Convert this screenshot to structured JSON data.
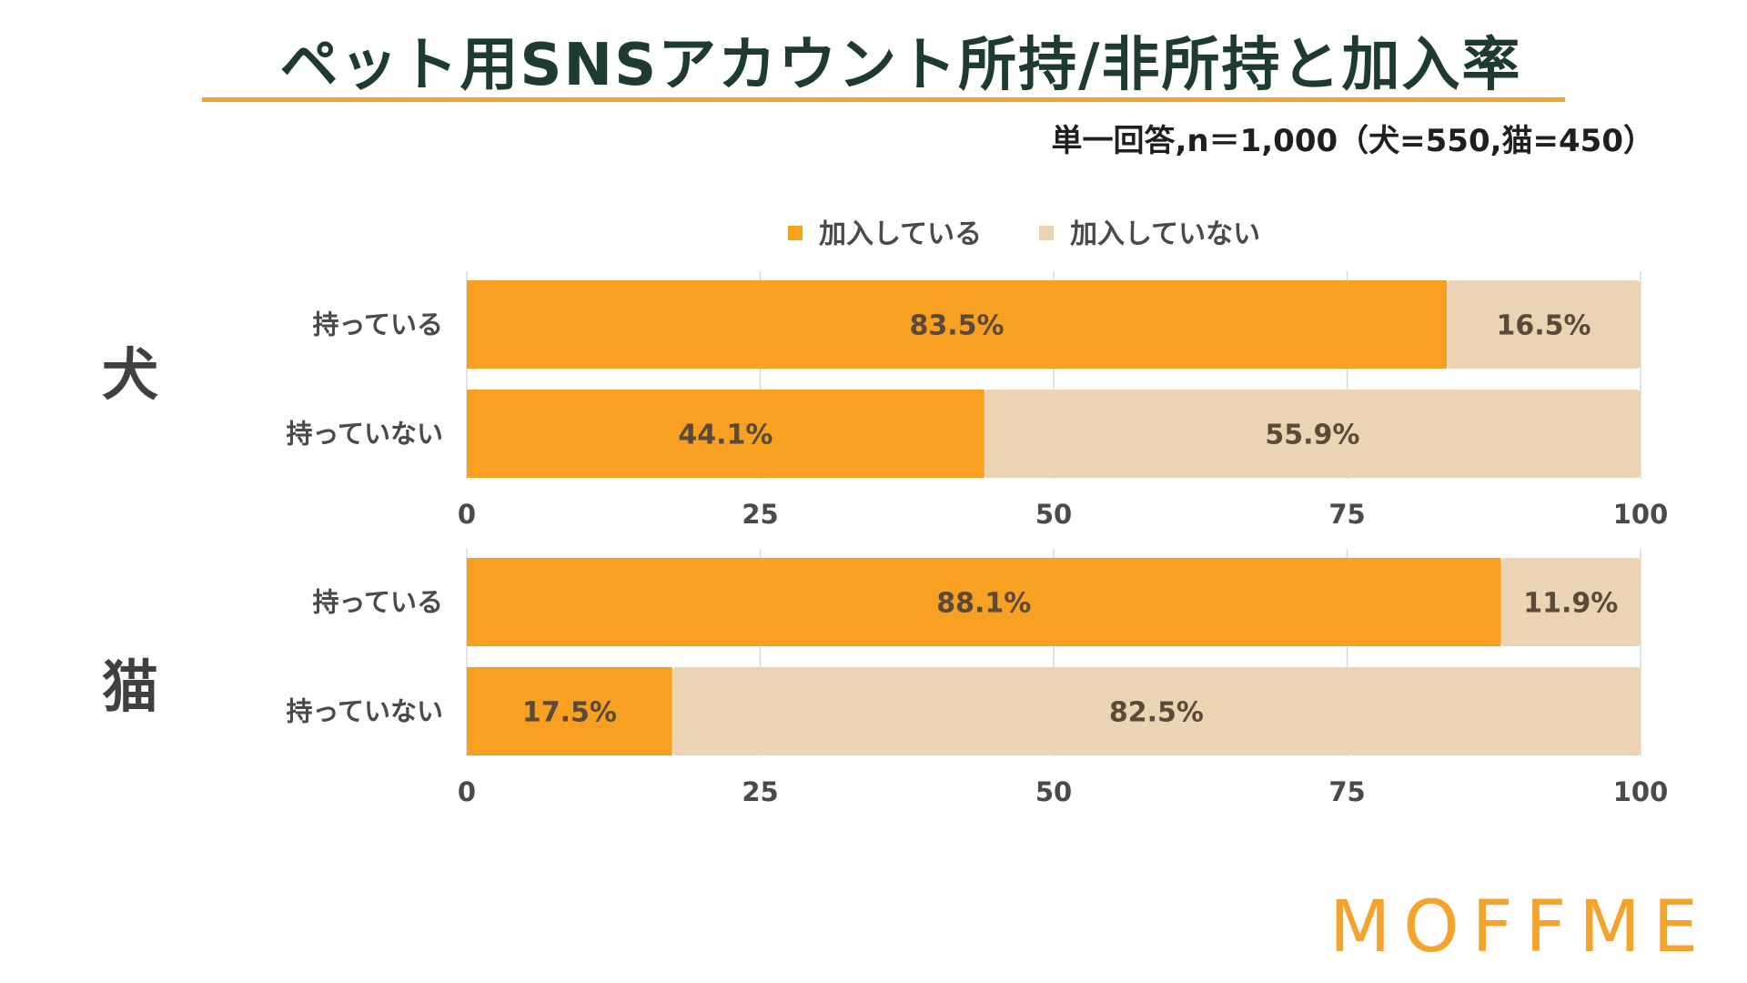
{
  "title": "ペット用SNSアカウント所持/非所持と加入率",
  "subtitle": "単一回答,n＝1,000（犬=550,猫=450）",
  "logo": "MOFFME",
  "colors": {
    "joined": "#f7a022",
    "not_joined": "#ebd4b3",
    "title_underline": "#f5a32b",
    "title_text": "#1e3b2f",
    "logo": "#f5a32b"
  },
  "chart_data": {
    "type": "bar",
    "orientation": "horizontal",
    "stacked": true,
    "legend_position": "top",
    "legend": [
      "加入している",
      "加入していない"
    ],
    "categories": [
      "持っている",
      "持っていない"
    ],
    "xlim": [
      0,
      100
    ],
    "xticks": [
      0,
      25,
      50,
      75,
      100
    ],
    "grid": true,
    "groups": [
      {
        "label": "犬",
        "series": [
          {
            "name": "加入している",
            "values": [
              83.5,
              44.1
            ],
            "labels": [
              "83.5%",
              "44.1%"
            ]
          },
          {
            "name": "加入していない",
            "values": [
              16.5,
              55.9
            ],
            "labels": [
              "16.5%",
              "55.9%"
            ]
          }
        ]
      },
      {
        "label": "猫",
        "series": [
          {
            "name": "加入している",
            "values": [
              88.1,
              17.5
            ],
            "labels": [
              "88.1%",
              "17.5%"
            ]
          },
          {
            "name": "加入していない",
            "values": [
              11.9,
              82.5
            ],
            "labels": [
              "11.9%",
              "82.5%"
            ]
          }
        ]
      }
    ]
  }
}
